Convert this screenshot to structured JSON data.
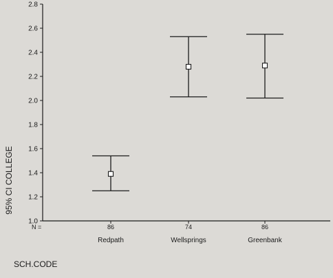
{
  "chart_data": {
    "type": "errorbar",
    "categories": [
      "Redpath",
      "Wellsprings",
      "Greenbank"
    ],
    "n_label": "N =",
    "n_values": [
      "86",
      "74",
      "86"
    ],
    "series": [
      {
        "means": [
          1.39,
          2.28,
          2.29
        ],
        "lower": [
          1.25,
          2.03,
          2.02
        ],
        "upper": [
          1.54,
          2.53,
          2.55
        ]
      }
    ],
    "ylabel": "95% CI COLLEGE",
    "xlabel": "SCH.CODE",
    "ylim": [
      1.0,
      2.8
    ],
    "yticks": [
      "1.0",
      "1.2",
      "1.4",
      "1.6",
      "1.8",
      "2.0",
      "2.2",
      "2.4",
      "2.6",
      "2.8"
    ],
    "grid": false,
    "colors": {
      "background": "#dcdad6",
      "ink": "#1a1a1a",
      "marker_fill": "#ffffff"
    }
  }
}
